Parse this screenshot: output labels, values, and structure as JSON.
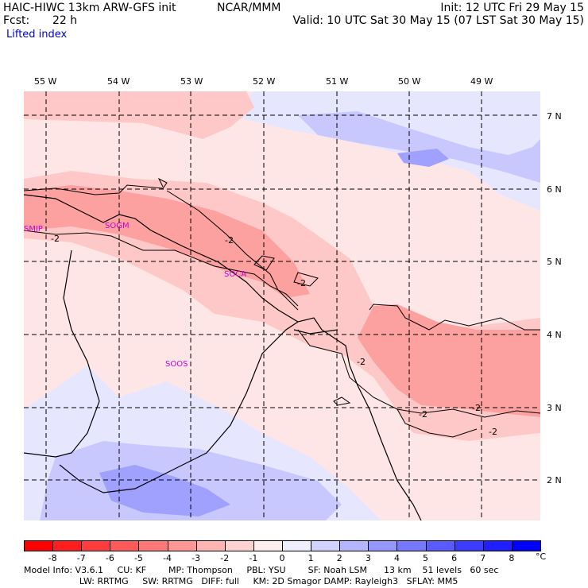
{
  "header": {
    "model": "HAIC-HIWC 13km ARW-GFS init",
    "org": "NCAR/MMM",
    "init": "Init: 12 UTC Fri 29 May 15",
    "fcst_label": "Fcst:",
    "fcst_value": "22 h",
    "valid": "Valid: 10 UTC Sat 30 May 15 (07 LST Sat 30 May 15)",
    "field": "Lifted index"
  },
  "map": {
    "lon_labels": [
      "55 W",
      "54 W",
      "53 W",
      "52 W",
      "51 W",
      "50 W",
      "49 W"
    ],
    "lat_labels": [
      "7 N",
      "6 N",
      "5 N",
      "4 N",
      "3 N",
      "2 N"
    ],
    "stations": [
      "SMJP",
      "SOGM",
      "SOCA",
      "SOOS"
    ],
    "contour_labels": [
      "-2",
      "-2",
      "-2",
      "-2",
      "-2",
      "-2",
      "-2"
    ],
    "colors": {
      "neg1": "#ffe6e6",
      "neg2": "#ffc8c8",
      "neg3": "#fca0a0",
      "pos1": "#e6e6ff",
      "pos2": "#c8c8ff",
      "pos3": "#a0a0ff",
      "pos4": "#8080f0",
      "station": "#cc00cc"
    }
  },
  "colorbar": {
    "ticks": [
      "-8",
      "-7",
      "-6",
      "-5",
      "-4",
      "-3",
      "-2",
      "-1",
      "0",
      "1",
      "2",
      "3",
      "4",
      "5",
      "6",
      "7",
      "8"
    ],
    "unit": "°C",
    "colors": [
      "#ff0000",
      "#ff1e1e",
      "#ff3c3c",
      "#ff5a5a",
      "#ff7878",
      "#ff9696",
      "#ffb4b4",
      "#ffd2d2",
      "#ffeeee",
      "#eeeeff",
      "#d2d2ff",
      "#b4b4ff",
      "#9696ff",
      "#7878ff",
      "#5a5aff",
      "#3c3cff",
      "#1e1eff",
      "#0000ff"
    ]
  },
  "footer": {
    "line1": "Model Info: V3.6.1     CU: KF        MP: Thompson     PBL: YSU        SF: Noah LSM      13 km    51 levels   60 sec",
    "line2": "                    LW: RRTMG     SW: RRTMG   DIFF: full     KM: 2D Smagor DAMP: Rayleigh3   SFLAY: MM5"
  }
}
